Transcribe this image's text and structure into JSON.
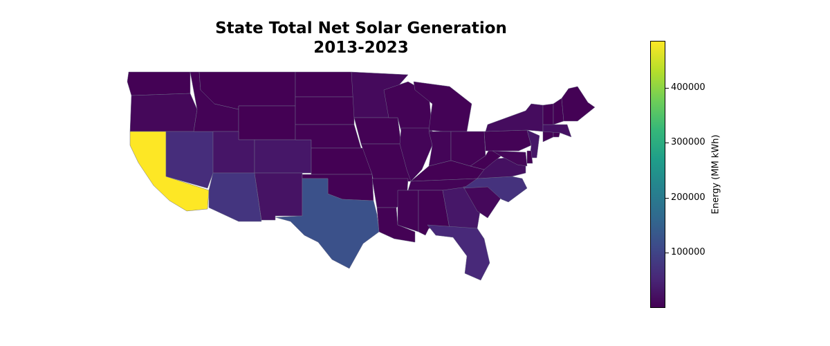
{
  "chart_data": {
    "type": "choropleth",
    "title_line1": "State Total Net Solar Generation",
    "title_line2": "2013-2023",
    "colorbar": {
      "label": "Energy (MM kWh)",
      "colormap": "viridis",
      "min": 0,
      "max": 485000,
      "ticks": [
        100000,
        200000,
        300000,
        400000
      ],
      "tick_labels": [
        "100000",
        "200000",
        "300000",
        "400000"
      ]
    },
    "states": [
      {
        "state": "WA",
        "value": 1000
      },
      {
        "state": "OR",
        "value": 9000
      },
      {
        "state": "CA",
        "value": 485000
      },
      {
        "state": "NV",
        "value": 62000
      },
      {
        "state": "ID",
        "value": 3000
      },
      {
        "state": "MT",
        "value": 500
      },
      {
        "state": "WY",
        "value": 500
      },
      {
        "state": "UT",
        "value": 28000
      },
      {
        "state": "CO",
        "value": 30000
      },
      {
        "state": "AZ",
        "value": 75000
      },
      {
        "state": "NM",
        "value": 24000
      },
      {
        "state": "ND",
        "value": 100
      },
      {
        "state": "SD",
        "value": 100
      },
      {
        "state": "NE",
        "value": 800
      },
      {
        "state": "KS",
        "value": 500
      },
      {
        "state": "OK",
        "value": 1500
      },
      {
        "state": "TX",
        "value": 120000
      },
      {
        "state": "MN",
        "value": 12000
      },
      {
        "state": "IA",
        "value": 1500
      },
      {
        "state": "MO",
        "value": 2000
      },
      {
        "state": "AR",
        "value": 3000
      },
      {
        "state": "LA",
        "value": 2000
      },
      {
        "state": "WI",
        "value": 2500
      },
      {
        "state": "IL",
        "value": 6000
      },
      {
        "state": "MI",
        "value": 2500
      },
      {
        "state": "IN",
        "value": 6000
      },
      {
        "state": "OH",
        "value": 3000
      },
      {
        "state": "KY",
        "value": 500
      },
      {
        "state": "TN",
        "value": 4000
      },
      {
        "state": "MS",
        "value": 2500
      },
      {
        "state": "AL",
        "value": 2000
      },
      {
        "state": "GA",
        "value": 30000
      },
      {
        "state": "FL",
        "value": 55000
      },
      {
        "state": "SC",
        "value": 10000
      },
      {
        "state": "NC",
        "value": 70000
      },
      {
        "state": "VA",
        "value": 20000
      },
      {
        "state": "WV",
        "value": 100
      },
      {
        "state": "PA",
        "value": 2500
      },
      {
        "state": "NY",
        "value": 15000
      },
      {
        "state": "NJ",
        "value": 30000
      },
      {
        "state": "MD",
        "value": 8000
      },
      {
        "state": "DE",
        "value": 1500
      },
      {
        "state": "CT",
        "value": 4000
      },
      {
        "state": "RI",
        "value": 1500
      },
      {
        "state": "MA",
        "value": 22000
      },
      {
        "state": "VT",
        "value": 2000
      },
      {
        "state": "NH",
        "value": 500
      },
      {
        "state": "ME",
        "value": 1500
      }
    ]
  }
}
